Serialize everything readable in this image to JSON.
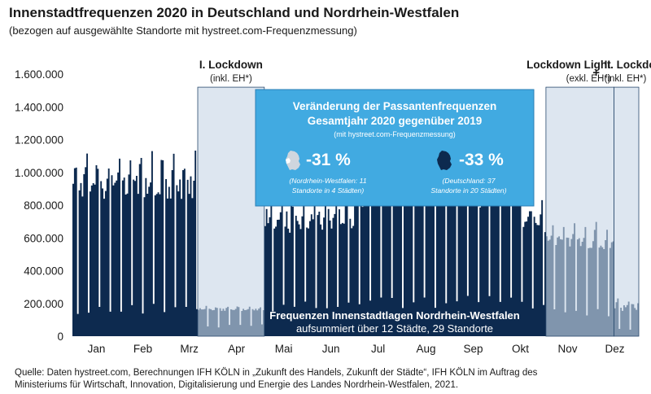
{
  "header": {
    "title": "Innenstadtfrequenzen 2020 in Deutschland und Nordrhein-Westfalen",
    "subtitle": "(bezogen auf ausgewählte Standorte mit hystreet.com-Frequenzmessung)"
  },
  "chart_data": {
    "type": "area",
    "months": [
      "Jan",
      "Feb",
      "Mrz",
      "Apr",
      "Mai",
      "Jun",
      "Jul",
      "Aug",
      "Sep",
      "Okt",
      "Nov",
      "Dez"
    ],
    "y_ticks": [
      "1.600.000",
      "1.400.000",
      "1.200.000",
      "1.000.000",
      "800.000",
      "600.000",
      "400.000",
      "200.000",
      "0"
    ],
    "ylim": [
      0,
      1600000
    ],
    "series_label_line1": "Frequenzen Innenstadtlagen Nordrhein-Westfalen",
    "series_label_line2": "aufsummiert über 12 Städte, 29 Standorte",
    "periods": [
      {
        "title": "I. Lockdown",
        "sub": "(inkl. EH*)",
        "from": "2020-03-22",
        "to": "2020-05-03"
      },
      {
        "title": "Lockdown Light",
        "sub": "(exkl. EH*)",
        "from": "2020-11-02",
        "to": "2020-12-15"
      },
      {
        "title": "II. Lockdown",
        "sub": "(inkl. EH*)",
        "from": "2020-12-16",
        "to": "2020-12-31"
      }
    ],
    "plus_sign": "+",
    "segments": [
      {
        "from": "2020-01-01",
        "to": "2020-03-21",
        "weekday": [
          640000,
          1150000
        ],
        "sunday": [
          120000,
          200000
        ]
      },
      {
        "from": "2020-03-22",
        "to": "2020-05-03",
        "weekday": [
          130000,
          190000
        ],
        "sunday": [
          50000,
          80000
        ]
      },
      {
        "from": "2020-05-04",
        "to": "2020-06-30",
        "weekday": [
          400000,
          950000
        ],
        "sunday": [
          150000,
          220000
        ]
      },
      {
        "from": "2020-07-01",
        "to": "2020-10-15",
        "weekday": [
          600000,
          1080000
        ],
        "sunday": [
          170000,
          250000
        ]
      },
      {
        "from": "2020-10-16",
        "to": "2020-11-01",
        "weekday": [
          480000,
          880000
        ],
        "sunday": [
          150000,
          220000
        ]
      },
      {
        "from": "2020-11-02",
        "to": "2020-12-15",
        "weekday": [
          420000,
          700000
        ],
        "sunday": [
          120000,
          170000
        ]
      },
      {
        "from": "2020-12-16",
        "to": "2020-12-31",
        "weekday": [
          80000,
          250000
        ],
        "sunday": [
          30000,
          70000
        ]
      }
    ],
    "colors": {
      "area": "#0d2a4f",
      "shade": "rgba(200,215,230,0.62)",
      "box": "#41aae1"
    }
  },
  "callout": {
    "title_line1": "Veränderung der Passantenfrequenzen",
    "title_line2": "Gesamtjahr 2020 gegenüber 2019",
    "subtitle": "(mit hystreet.com-Frequenzmessung)",
    "nrw": {
      "value": "-31 %",
      "note_line1": "(Nordrhein-Westfalen: 11",
      "note_line2": "Standorte in 4 Städten)"
    },
    "de": {
      "value": "-33 %",
      "note_line1": "(Deutschland: 37",
      "note_line2": "Standorte in 20 Städten)"
    }
  },
  "footer": {
    "line1": "Quelle: Daten hystreet.com, Berechnungen IFH KÖLN in „Zukunft des Handels, Zukunft der Städte“, IFH KÖLN im Auftrag des",
    "line2": "Ministeriums für Wirtschaft, Innovation, Digitalisierung und Energie des Landes Nordrhein-Westfalen, 2021."
  }
}
